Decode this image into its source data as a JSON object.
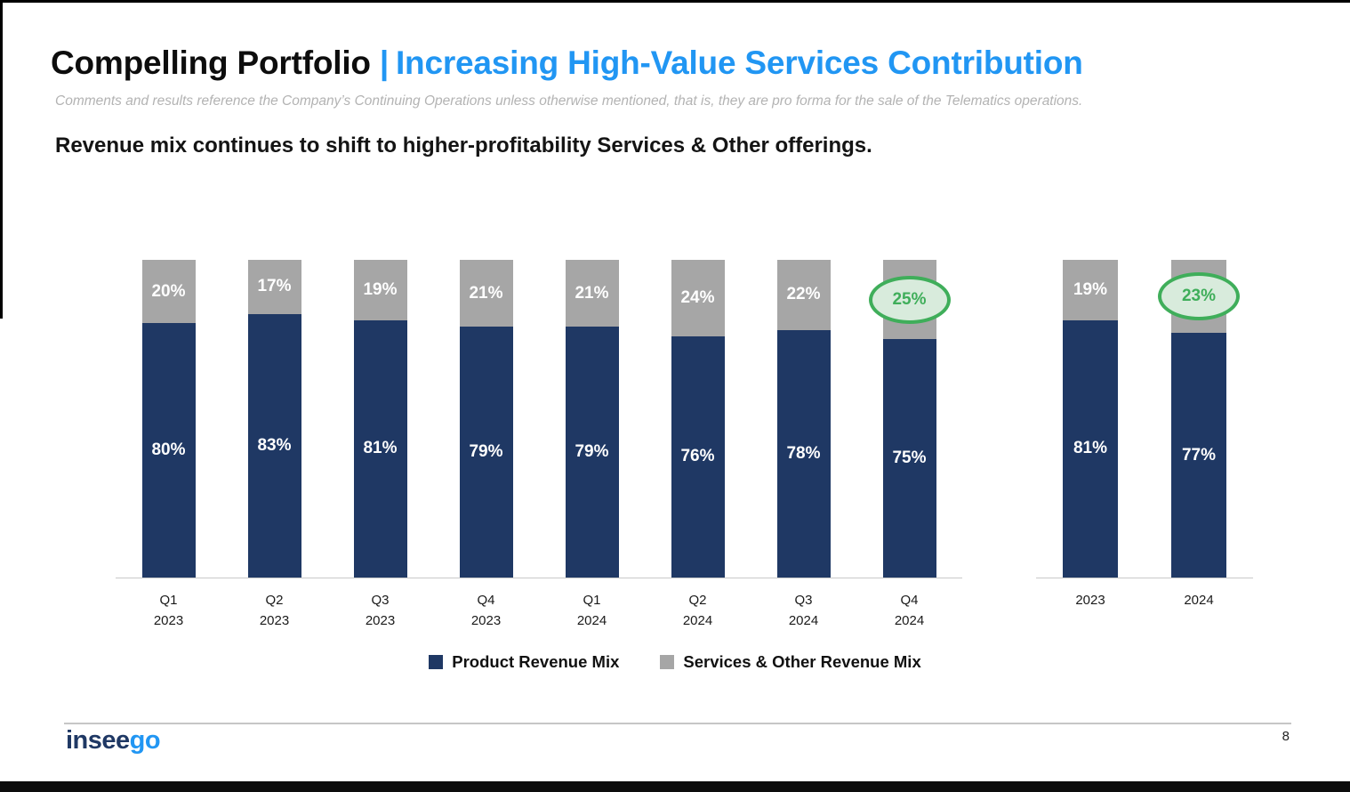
{
  "header": {
    "title_black": "Compelling Portfolio",
    "title_separator": "|",
    "title_blue": "Increasing High-Value Services Contribution",
    "subtitle": "Comments and results reference the Company’s Continuing Operations unless otherwise mentioned, that is, they are pro forma for the sale of the Telematics operations.",
    "statement": "Revenue mix continues to shift to higher-profitability Services & Other offerings."
  },
  "footer": {
    "logo_part1": "insee",
    "logo_part2": "go",
    "page_number": "8"
  },
  "colors": {
    "product_navy": "#1F3864",
    "services_gray": "#A6A6A6",
    "title_blue": "#2196F3",
    "highlight_green": "#3FAE5A",
    "highlight_fill": "#D8EBDC"
  },
  "chart_data": {
    "type": "bar",
    "stacked": true,
    "unit": "%",
    "ylim": [
      0,
      100
    ],
    "grid": false,
    "legend": [
      "Product Revenue Mix",
      "Services & Other Revenue Mix"
    ],
    "legend_position": "bottom",
    "groups": [
      {
        "name": "quarterly",
        "categories": [
          [
            "Q1",
            "2023"
          ],
          [
            "Q2",
            "2023"
          ],
          [
            "Q3",
            "2023"
          ],
          [
            "Q4",
            "2023"
          ],
          [
            "Q1",
            "2024"
          ],
          [
            "Q2",
            "2024"
          ],
          [
            "Q3",
            "2024"
          ],
          [
            "Q4",
            "2024"
          ]
        ],
        "series": [
          {
            "name": "Product Revenue Mix",
            "values": [
              80,
              83,
              81,
              79,
              79,
              76,
              78,
              75
            ]
          },
          {
            "name": "Services & Other Revenue Mix",
            "values": [
              20,
              17,
              19,
              21,
              21,
              24,
              22,
              25
            ]
          }
        ],
        "highlight_index": 7
      },
      {
        "name": "annual",
        "categories": [
          [
            "2023"
          ],
          [
            "2024"
          ]
        ],
        "series": [
          {
            "name": "Product Revenue Mix",
            "values": [
              81,
              77
            ]
          },
          {
            "name": "Services & Other Revenue Mix",
            "values": [
              19,
              23
            ]
          }
        ],
        "highlight_index": 1
      }
    ]
  }
}
